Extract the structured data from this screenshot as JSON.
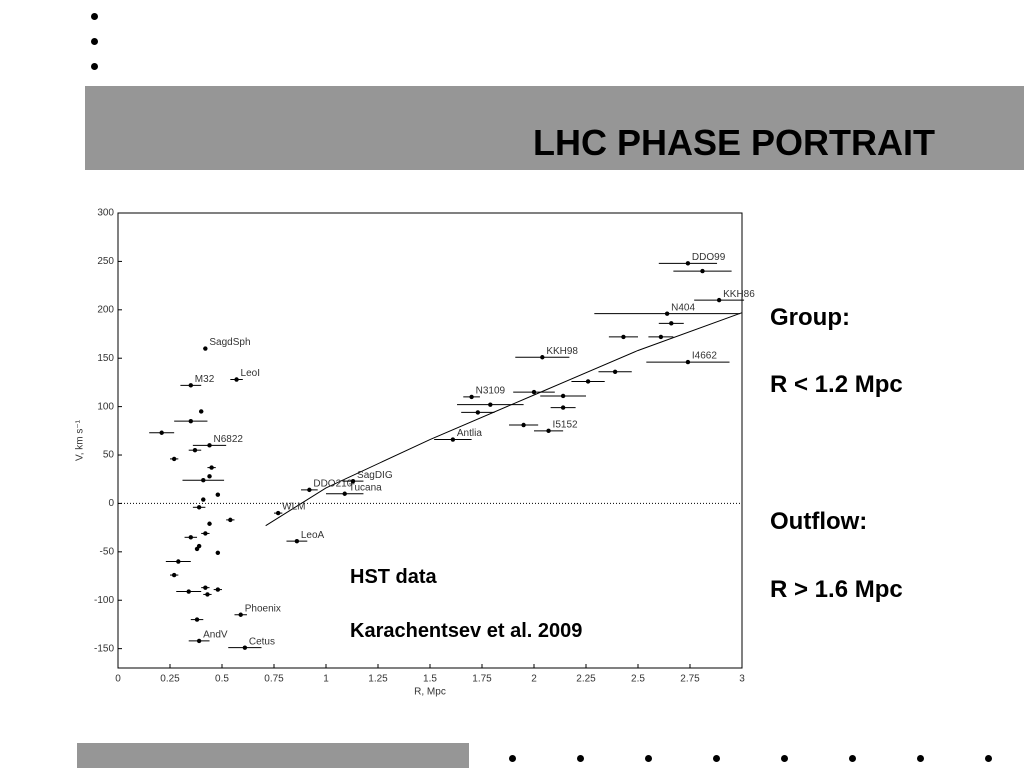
{
  "slide": {
    "title": "LHC PHASE PORTRAIT",
    "side_text": [
      "Group:",
      "R < 1.2 Mpc",
      "Outflow:",
      "R > 1.6 Mpc"
    ],
    "annotations": [
      "HST data",
      "Karachentsev et al. 2009"
    ]
  },
  "chart_data": {
    "type": "scatter",
    "xlabel": "R, Mpc",
    "ylabel": "V, km s⁻¹",
    "xlim": [
      0,
      3
    ],
    "ylim": [
      -170,
      300
    ],
    "xticks": [
      0,
      0.25,
      0.5,
      0.75,
      1,
      1.25,
      1.5,
      1.75,
      2,
      2.25,
      2.5,
      2.75,
      3
    ],
    "yticks": [
      -150,
      -100,
      -50,
      0,
      50,
      100,
      150,
      200,
      250,
      300
    ],
    "color": "#000000",
    "zero_line": 0,
    "x": [
      0.42,
      0.35,
      0.57,
      0.4,
      0.35,
      0.21,
      0.44,
      0.37,
      0.27,
      0.45,
      0.44,
      0.41,
      0.48,
      0.41,
      0.39,
      0.44,
      0.54,
      0.35,
      0.42,
      0.39,
      0.38,
      0.48,
      0.29,
      0.27,
      0.34,
      0.42,
      0.48,
      0.43,
      0.38,
      0.59,
      0.39,
      0.61,
      0.92,
      1.13,
      1.09,
      0.77,
      0.86,
      1.61,
      1.7,
      1.79,
      1.73,
      2.0,
      2.04,
      2.14,
      2.14,
      1.95,
      2.07,
      2.26,
      2.39,
      2.43,
      2.61,
      2.66,
      2.64,
      2.74,
      2.74,
      2.81,
      2.89
    ],
    "values": [
      160,
      122,
      128,
      95,
      85,
      73,
      60,
      55,
      46,
      37,
      28,
      24,
      9,
      4,
      -4,
      -21,
      -17,
      -35,
      -31,
      -44,
      -47,
      -51,
      -60,
      -74,
      -91,
      -87,
      -89,
      -94,
      -120,
      -115,
      -142,
      -149,
      14,
      23,
      10,
      -10,
      -39,
      66,
      110,
      102,
      94,
      115,
      151,
      111,
      99,
      81,
      75,
      126,
      136,
      172,
      172,
      186,
      196,
      146,
      248,
      240,
      210
    ],
    "xerr": [
      0.01,
      0.05,
      0.03,
      0.01,
      0.08,
      0.06,
      0.08,
      0.03,
      0.02,
      0.02,
      0.01,
      0.1,
      0.01,
      0.01,
      0.03,
      0.01,
      0.02,
      0.03,
      0.02,
      0.01,
      0.01,
      0.01,
      0.06,
      0.02,
      0.06,
      0.02,
      0.02,
      0.02,
      0.03,
      0.03,
      0.05,
      0.08,
      0.04,
      0.05,
      0.09,
      0.02,
      0.05,
      0.09,
      0.04,
      0.16,
      0.08,
      0.1,
      0.13,
      0.11,
      0.06,
      0.07,
      0.07,
      0.08,
      0.08,
      0.07,
      0.06,
      0.06,
      0.35,
      0.2,
      0.14,
      0.14,
      0.12
    ],
    "point_labels": [
      "SagdSph",
      "M32",
      "LeoI",
      null,
      null,
      null,
      "N6822",
      null,
      null,
      null,
      null,
      null,
      null,
      null,
      null,
      null,
      null,
      null,
      null,
      null,
      null,
      null,
      null,
      null,
      null,
      null,
      null,
      null,
      null,
      "Phoenix",
      "AndV",
      "Cetus",
      "DDO210",
      "SagDIG",
      "Tucana",
      "WLM",
      "LeoA",
      "Antlia",
      "N3109",
      null,
      null,
      null,
      "KKH98",
      null,
      null,
      null,
      "I5152",
      null,
      null,
      null,
      null,
      null,
      "N404",
      "I4662",
      "DDO99",
      null,
      "KKH86"
    ],
    "curve_x": [
      0.71,
      1.0,
      1.5,
      2.0,
      2.5,
      3.0
    ],
    "curve_values": [
      -23,
      16,
      66,
      112,
      158,
      197
    ]
  }
}
